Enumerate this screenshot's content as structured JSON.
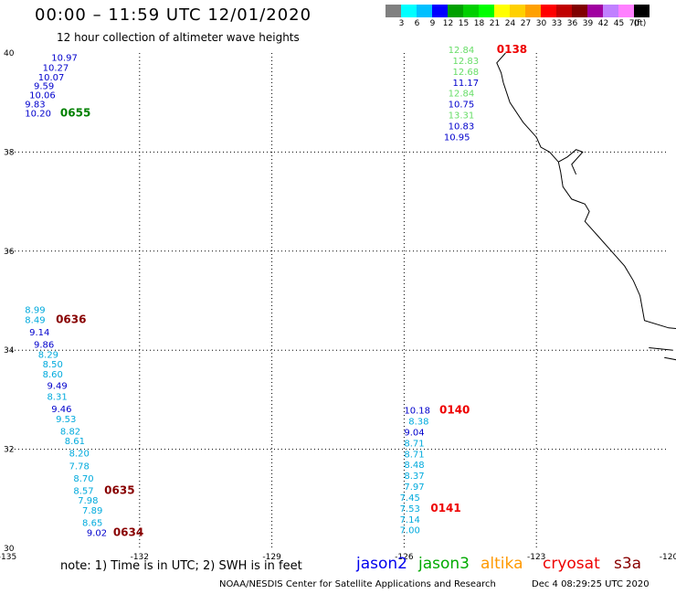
{
  "header": {
    "title": "00:00 – 11:59 UTC 12/01/2020",
    "subtitle": "12 hour collection of altimeter wave heights"
  },
  "legend": {
    "colors": [
      "#808080",
      "#00ffff",
      "#00c0ff",
      "#0000ff",
      "#00a000",
      "#00d000",
      "#00ff00",
      "#ffff00",
      "#ffd000",
      "#ffa000",
      "#ff0000",
      "#c00000",
      "#800000",
      "#a000a0",
      "#c080ff",
      "#ff80ff",
      "#000000"
    ],
    "labels": [
      "3",
      "6",
      "9",
      "12",
      "15",
      "18",
      "21",
      "24",
      "27",
      "30",
      "33",
      "36",
      "39",
      "42",
      "45",
      "70",
      "(ft)"
    ]
  },
  "axes": {
    "lon_labels": [
      "-135",
      "-132",
      "-129",
      "-126",
      "-123",
      "-120"
    ],
    "lat_labels": [
      "40",
      "38",
      "36",
      "34",
      "32",
      "30"
    ]
  },
  "chart_data": {
    "type": "scatter",
    "x_range": [
      -135,
      -120
    ],
    "y_range": [
      30,
      40
    ],
    "points": [
      {
        "lon": -134.0,
        "lat": 39.84,
        "text": "10.97",
        "color": "#0000cc"
      },
      {
        "lon": -134.2,
        "lat": 39.64,
        "text": "10.27",
        "color": "#0000cc"
      },
      {
        "lon": -134.3,
        "lat": 39.45,
        "text": "10.07",
        "color": "#0000cc"
      },
      {
        "lon": -134.4,
        "lat": 39.27,
        "text": "9.59",
        "color": "#0000cc"
      },
      {
        "lon": -134.5,
        "lat": 39.09,
        "text": "10.06",
        "color": "#0000cc"
      },
      {
        "lon": -134.6,
        "lat": 38.9,
        "text": "9.83",
        "color": "#0000cc"
      },
      {
        "lon": -134.6,
        "lat": 38.72,
        "text": "10.20",
        "color": "#0000cc"
      },
      {
        "lon": -133.8,
        "lat": 38.72,
        "text": "0655",
        "color": "#008000",
        "time": true
      },
      {
        "lon": -125.0,
        "lat": 40.0,
        "text": "12.84",
        "color": "#66dd66"
      },
      {
        "lon": -123.9,
        "lat": 40.0,
        "text": "0138",
        "color": "#ee0000",
        "time": true
      },
      {
        "lon": -124.9,
        "lat": 39.78,
        "text": "12.83",
        "color": "#66dd66"
      },
      {
        "lon": -124.9,
        "lat": 39.56,
        "text": "12.68",
        "color": "#66dd66"
      },
      {
        "lon": -124.9,
        "lat": 39.34,
        "text": "11.17",
        "color": "#0000cc"
      },
      {
        "lon": -125.0,
        "lat": 39.12,
        "text": "12.84",
        "color": "#66dd66"
      },
      {
        "lon": -125.0,
        "lat": 38.9,
        "text": "10.75",
        "color": "#0000cc"
      },
      {
        "lon": -125.0,
        "lat": 38.68,
        "text": "13.31",
        "color": "#66dd66"
      },
      {
        "lon": -125.0,
        "lat": 38.46,
        "text": "10.83",
        "color": "#0000cc"
      },
      {
        "lon": -125.1,
        "lat": 38.24,
        "text": "10.95",
        "color": "#0000cc"
      },
      {
        "lon": -134.6,
        "lat": 34.75,
        "text": "8.99",
        "color": "#00aadd"
      },
      {
        "lon": -134.6,
        "lat": 34.55,
        "text": "8.49",
        "color": "#00aadd"
      },
      {
        "lon": -133.9,
        "lat": 34.55,
        "text": "0636",
        "color": "#880000",
        "time": true
      },
      {
        "lon": -134.5,
        "lat": 34.3,
        "text": "9.14",
        "color": "#0000cc"
      },
      {
        "lon": -134.4,
        "lat": 34.05,
        "text": "9.86",
        "color": "#0000cc"
      },
      {
        "lon": -134.3,
        "lat": 33.85,
        "text": "8.29",
        "color": "#00aadd"
      },
      {
        "lon": -134.2,
        "lat": 33.65,
        "text": "8.50",
        "color": "#00aadd"
      },
      {
        "lon": -134.2,
        "lat": 33.45,
        "text": "8.60",
        "color": "#00aadd"
      },
      {
        "lon": -134.1,
        "lat": 33.22,
        "text": "9.49",
        "color": "#0000cc"
      },
      {
        "lon": -134.1,
        "lat": 33.0,
        "text": "8.31",
        "color": "#00aadd"
      },
      {
        "lon": -134.0,
        "lat": 32.75,
        "text": "9.46",
        "color": "#0000cc"
      },
      {
        "lon": -133.9,
        "lat": 32.55,
        "text": "9.53",
        "color": "#00aadd"
      },
      {
        "lon": -133.8,
        "lat": 32.3,
        "text": "8.82",
        "color": "#00aadd"
      },
      {
        "lon": -133.7,
        "lat": 32.1,
        "text": "8.61",
        "color": "#00aadd"
      },
      {
        "lon": -133.6,
        "lat": 31.85,
        "text": "8.20",
        "color": "#00aadd"
      },
      {
        "lon": -133.6,
        "lat": 31.6,
        "text": "7.78",
        "color": "#00aadd"
      },
      {
        "lon": -133.5,
        "lat": 31.35,
        "text": "8.70",
        "color": "#00aadd"
      },
      {
        "lon": -133.5,
        "lat": 31.1,
        "text": "8.57",
        "color": "#00aadd"
      },
      {
        "lon": -132.8,
        "lat": 31.1,
        "text": "0635",
        "color": "#880000",
        "time": true
      },
      {
        "lon": -133.4,
        "lat": 30.9,
        "text": "7.98",
        "color": "#00aadd"
      },
      {
        "lon": -133.3,
        "lat": 30.7,
        "text": "7.89",
        "color": "#00aadd"
      },
      {
        "lon": -133.3,
        "lat": 30.45,
        "text": "8.65",
        "color": "#00aadd"
      },
      {
        "lon": -133.2,
        "lat": 30.25,
        "text": "9.02",
        "color": "#0000cc"
      },
      {
        "lon": -132.6,
        "lat": 30.25,
        "text": "0634",
        "color": "#880000",
        "time": true
      },
      {
        "lon": -126.0,
        "lat": 32.72,
        "text": "10.18",
        "color": "#0000cc"
      },
      {
        "lon": -125.2,
        "lat": 32.72,
        "text": "0140",
        "color": "#ee0000",
        "time": true
      },
      {
        "lon": -125.9,
        "lat": 32.5,
        "text": "8.38",
        "color": "#00aadd"
      },
      {
        "lon": -126.0,
        "lat": 32.28,
        "text": "9.04",
        "color": "#0000cc"
      },
      {
        "lon": -126.0,
        "lat": 32.06,
        "text": "8.71",
        "color": "#00aadd"
      },
      {
        "lon": -126.0,
        "lat": 31.84,
        "text": "8.71",
        "color": "#00aadd"
      },
      {
        "lon": -126.0,
        "lat": 31.62,
        "text": "8.48",
        "color": "#00aadd"
      },
      {
        "lon": -126.0,
        "lat": 31.4,
        "text": "8.37",
        "color": "#00aadd"
      },
      {
        "lon": -126.0,
        "lat": 31.18,
        "text": "7.97",
        "color": "#00aadd"
      },
      {
        "lon": -126.1,
        "lat": 30.96,
        "text": "7.45",
        "color": "#00aadd"
      },
      {
        "lon": -126.1,
        "lat": 30.74,
        "text": "7.53",
        "color": "#00aadd"
      },
      {
        "lon": -125.4,
        "lat": 30.74,
        "text": "0141",
        "color": "#ee0000",
        "time": true
      },
      {
        "lon": -126.1,
        "lat": 30.52,
        "text": "7.14",
        "color": "#00aadd"
      },
      {
        "lon": -126.1,
        "lat": 30.3,
        "text": "7.00",
        "color": "#00aadd"
      }
    ],
    "coastline_lonlat": [
      [
        -123.7,
        40.0
      ],
      [
        -123.9,
        39.8
      ],
      [
        -123.8,
        39.6
      ],
      [
        -123.75,
        39.4
      ],
      [
        -123.6,
        39.0
      ],
      [
        -123.3,
        38.6
      ],
      [
        -123.0,
        38.3
      ],
      [
        -122.9,
        38.1
      ],
      [
        -122.7,
        38.0
      ],
      [
        -122.5,
        37.8
      ],
      [
        -122.45,
        37.6
      ],
      [
        -122.4,
        37.3
      ],
      [
        -122.2,
        37.05
      ],
      [
        -121.9,
        36.95
      ],
      [
        -121.8,
        36.8
      ],
      [
        -121.9,
        36.6
      ],
      [
        -121.6,
        36.3
      ],
      [
        -121.3,
        36.0
      ],
      [
        -121.0,
        35.7
      ],
      [
        -120.8,
        35.4
      ],
      [
        -120.65,
        35.1
      ],
      [
        -120.55,
        34.6
      ],
      [
        -120.0,
        34.45
      ],
      [
        -119.4,
        34.4
      ]
    ],
    "bay_lonlat": [
      [
        -122.5,
        37.8
      ],
      [
        -122.3,
        37.9
      ],
      [
        -122.1,
        38.05
      ],
      [
        -121.95,
        38.0
      ],
      [
        -122.2,
        37.75
      ],
      [
        -122.1,
        37.55
      ]
    ],
    "islands_lonlat": [
      [
        [
          -120.45,
          34.05
        ],
        [
          -119.9,
          34.0
        ]
      ],
      [
        [
          -119.8,
          33.8
        ],
        [
          -120.1,
          33.85
        ]
      ]
    ]
  },
  "footer": {
    "note": "note: 1) Time is in UTC; 2) SWH is in feet",
    "satellites": [
      {
        "name": "jason2",
        "color": "#0000ee"
      },
      {
        "name": "jason3",
        "color": "#00aa00"
      },
      {
        "name": "altika",
        "color": "#ff9900"
      },
      {
        "name": "cryosat",
        "color": "#ee0000"
      },
      {
        "name": "s3a",
        "color": "#880000"
      }
    ],
    "credit": "NOAA/NESDIS Center for Satellite Applications and Research",
    "timestamp": "Dec  4 08:29:25 UTC 2020"
  }
}
